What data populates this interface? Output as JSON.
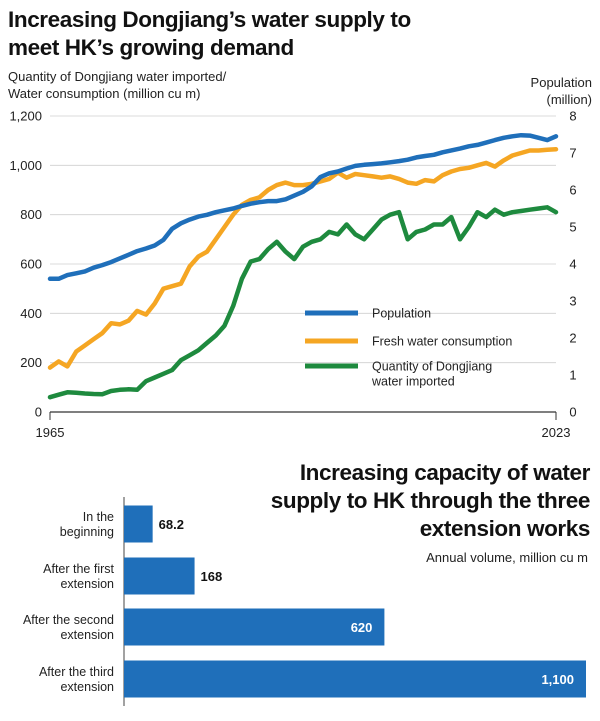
{
  "top_chart": {
    "title_lines": [
      "Increasing Dongjiang’s water supply to",
      "meet HK’s growing demand"
    ],
    "left_axis_label_lines": [
      "Quantity of Dongjiang water imported/",
      "Water consumption (million cu m)"
    ],
    "right_axis_label_lines": [
      "Population",
      "(million)"
    ]
  },
  "bottom_chart": {
    "title_lines": [
      "Increasing capacity of water",
      "supply to HK through the three",
      "extension works"
    ],
    "unit_label": "Annual volume, million cu m"
  },
  "colors": {
    "population": "#1f6fba",
    "fresh_water": "#f5a623",
    "dongjiang": "#1e8a3e",
    "bar": "#1f6fba",
    "grid": "#cfcfcf"
  },
  "chart_data": [
    {
      "type": "line",
      "title": "Increasing Dongjiang’s water supply to meet HK’s growing demand",
      "x_tick_labels": [
        "1965",
        "2023"
      ],
      "xlim": [
        1965,
        2023
      ],
      "ylabel_left": "Quantity of Dongjiang water imported/ Water consumption (million cu m)",
      "ylabel_right": "Population (million)",
      "ylim_left": [
        0,
        1200
      ],
      "ylim_right": [
        0,
        8
      ],
      "yticks_left": [
        "0",
        "200",
        "400",
        "600",
        "800",
        "1,000",
        "1,200"
      ],
      "yticks_right": [
        "0",
        "1",
        "2",
        "3",
        "4",
        "5",
        "6",
        "7",
        "8"
      ],
      "grid": true,
      "legend_position": "center-right",
      "x": [
        1965,
        1966,
        1967,
        1968,
        1969,
        1970,
        1971,
        1972,
        1973,
        1974,
        1975,
        1976,
        1977,
        1978,
        1979,
        1980,
        1981,
        1982,
        1983,
        1984,
        1985,
        1986,
        1987,
        1988,
        1989,
        1990,
        1991,
        1992,
        1993,
        1994,
        1995,
        1996,
        1997,
        1998,
        1999,
        2000,
        2001,
        2002,
        2003,
        2004,
        2005,
        2006,
        2007,
        2008,
        2009,
        2010,
        2011,
        2012,
        2013,
        2014,
        2015,
        2016,
        2017,
        2018,
        2019,
        2020,
        2021,
        2022,
        2023
      ],
      "series": [
        {
          "name": "Population",
          "axis": "right",
          "values": [
            3.6,
            3.6,
            3.7,
            3.75,
            3.8,
            3.9,
            3.97,
            4.05,
            4.15,
            4.25,
            4.35,
            4.42,
            4.5,
            4.65,
            4.95,
            5.1,
            5.2,
            5.28,
            5.33,
            5.4,
            5.45,
            5.5,
            5.57,
            5.63,
            5.67,
            5.7,
            5.7,
            5.75,
            5.85,
            5.95,
            6.1,
            6.35,
            6.45,
            6.5,
            6.58,
            6.65,
            6.68,
            6.7,
            6.72,
            6.75,
            6.78,
            6.82,
            6.88,
            6.92,
            6.95,
            7.02,
            7.07,
            7.12,
            7.18,
            7.22,
            7.28,
            7.35,
            7.41,
            7.45,
            7.48,
            7.47,
            7.41,
            7.35,
            7.45
          ]
        },
        {
          "name": "Fresh water consumption",
          "axis": "left",
          "values": [
            180,
            205,
            185,
            245,
            270,
            295,
            320,
            360,
            355,
            370,
            410,
            395,
            440,
            500,
            510,
            520,
            590,
            630,
            650,
            700,
            750,
            800,
            840,
            860,
            870,
            900,
            920,
            930,
            920,
            920,
            925,
            935,
            945,
            970,
            950,
            965,
            960,
            955,
            950,
            955,
            945,
            930,
            925,
            940,
            935,
            960,
            975,
            985,
            990,
            1000,
            1010,
            995,
            1020,
            1040,
            1050,
            1060,
            1060,
            1063,
            1065
          ]
        },
        {
          "name": "Quantity of Dongjiang water imported",
          "axis": "left",
          "values": [
            60,
            70,
            80,
            78,
            75,
            73,
            72,
            85,
            90,
            92,
            90,
            125,
            140,
            155,
            170,
            210,
            230,
            250,
            280,
            310,
            350,
            430,
            540,
            610,
            620,
            660,
            690,
            650,
            620,
            670,
            690,
            700,
            730,
            720,
            760,
            720,
            700,
            740,
            780,
            800,
            810,
            700,
            730,
            740,
            760,
            760,
            790,
            700,
            750,
            810,
            790,
            820,
            800,
            810,
            815,
            820,
            825,
            830,
            810
          ]
        }
      ]
    },
    {
      "type": "bar",
      "orientation": "horizontal",
      "title": "Increasing capacity of water supply to HK through the three extension works",
      "unit": "Annual volume, million cu m",
      "categories": [
        [
          "In the",
          "beginning"
        ],
        [
          "After the first",
          "extension"
        ],
        [
          "After the second",
          "extension"
        ],
        [
          "After the third",
          "extension"
        ]
      ],
      "values": [
        68.2,
        168,
        620,
        1100
      ],
      "value_labels": [
        "68.2",
        "168",
        "620",
        "1,100"
      ],
      "label_inside": [
        false,
        false,
        true,
        true
      ],
      "xlim": [
        0,
        1100
      ]
    }
  ]
}
